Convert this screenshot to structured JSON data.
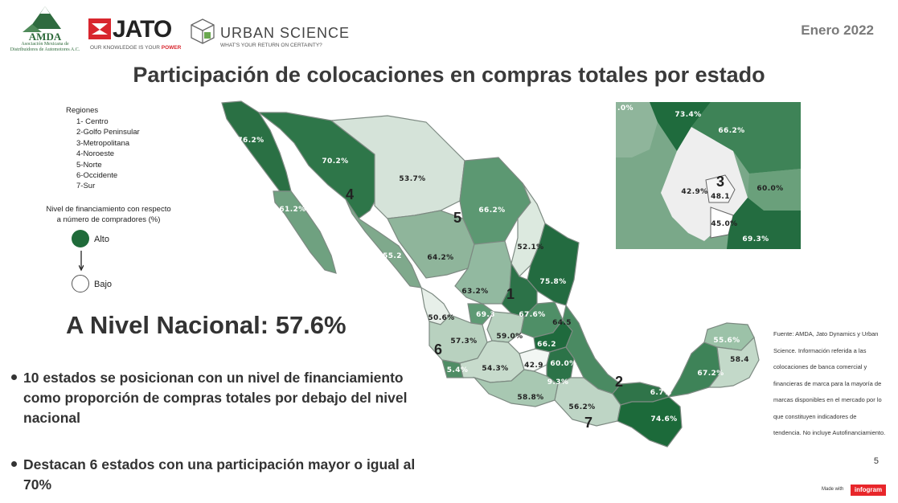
{
  "header": {
    "amda_logo_text": "AMDA",
    "amda_subtitle_1": "Asociación Mexicana de",
    "amda_subtitle_2": "Distribuidores de Automotores A.C.",
    "jato_name": "JATO",
    "jato_tagline_1": "OUR KNOWLEDGE IS YOUR ",
    "jato_tagline_2": "POWER",
    "urban_science_name": "URBAN SCIENCE",
    "urban_science_tagline": "WHAT'S YOUR RETURN ON CERTAINTY?",
    "date": "Enero 2022",
    "title": "Participación de colocaciones en compras totales por estado"
  },
  "legend": {
    "regions_title": "Regiones",
    "regions": [
      "1- Centro",
      "2-Golfo Peninsular",
      "3-Metropolitana",
      "4-Noroeste",
      "5-Norte",
      "6-Occidente",
      "7-Sur"
    ],
    "financing_title_1": "Nivel de financiamiento con respecto",
    "financing_title_2": "a número de compradores (%)",
    "high_label": "Alto",
    "low_label": "Bajo",
    "high_color": "#1f6b3a",
    "low_color": "#ffffff"
  },
  "national": "A Nivel Nacional: 57.6%",
  "bullets": [
    "10 estados se posicionan con un nivel de financiamiento como proporción de compras totales por debajo del nivel nacional",
    "Destacan 6 estados con una participación mayor o igual al 70%"
  ],
  "source": "Fuente: AMDA, Jato Dynamics y Urban Science. Información referida a las colocaciones de banca comercial y financieras de marca para la mayoría de marcas disponibles en el mercado por lo que constituyen indicadores de tendencia. No incluye Autofinanciamiento.",
  "page_number": "5",
  "made_with": "Made with",
  "infogram": "infogram",
  "map": {
    "labels": [
      "76.2%",
      "70.2%",
      "53.7%",
      "61.2%",
      "66.2%",
      "52.1%",
      "55.2",
      "64.2%",
      "75.8%",
      "63.2%",
      "69.3",
      "67.6%",
      "50.6%",
      "59.0%",
      "64.5",
      "57.3%",
      "66.2",
      "60.0%",
      "5.4%",
      "54.3%",
      "42.9",
      "9.3%",
      "58.8%",
      "56.2%",
      "6.7%",
      "74.6%",
      "55.6%",
      "67.2%",
      "58.4"
    ],
    "regions": [
      "1",
      "2",
      "4",
      "5",
      "6",
      "7"
    ],
    "inset_labels": [
      ".0%",
      "73.4%",
      "66.2%",
      "42.9%",
      "48.1",
      "60.0%",
      "45.0%",
      "69.3%"
    ],
    "inset_region": "3"
  }
}
